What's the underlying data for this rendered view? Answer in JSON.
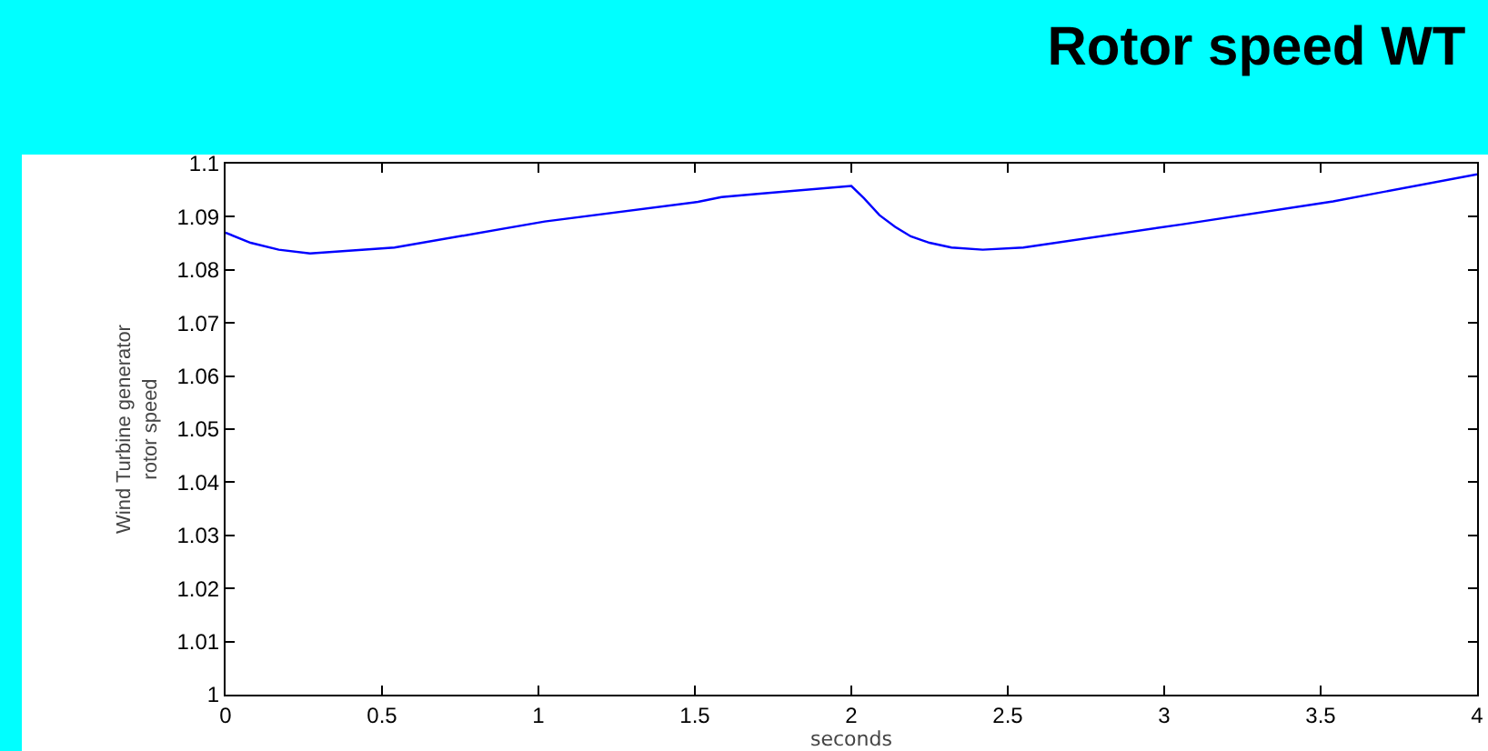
{
  "chart_data": {
    "type": "line",
    "title": "Rotor speed WT",
    "xlabel": "seconds",
    "ylabel": "Wind Turbine generator\nrotor speed",
    "x": [
      0,
      0.08,
      0.17,
      0.27,
      0.54,
      1.02,
      1.51,
      1.585,
      1.7,
      2.0,
      2.04,
      2.09,
      2.14,
      2.19,
      2.25,
      2.32,
      2.42,
      2.55,
      3.06,
      3.54,
      4
    ],
    "series": [
      {
        "color": "#0000ff",
        "values": [
          1.087,
          1.0851,
          1.0838,
          1.0831,
          1.0842,
          1.0891,
          1.0928,
          1.0937,
          1.0943,
          1.0958,
          1.0935,
          1.0903,
          1.0881,
          1.0863,
          1.0851,
          1.0842,
          1.0838,
          1.0842,
          1.0886,
          1.0929,
          1.098
        ]
      }
    ],
    "xlim": [
      0,
      4
    ],
    "xticks": [
      0,
      0.5,
      1,
      1.5,
      2,
      2.5,
      3,
      3.5,
      4
    ],
    "ylim": [
      1,
      1.1
    ],
    "yticks": [
      1,
      1.01,
      1.02,
      1.03,
      1.04,
      1.05,
      1.06,
      1.07,
      1.08,
      1.09,
      1.1
    ],
    "grid": false,
    "marker": "none",
    "line_style": "solid"
  }
}
